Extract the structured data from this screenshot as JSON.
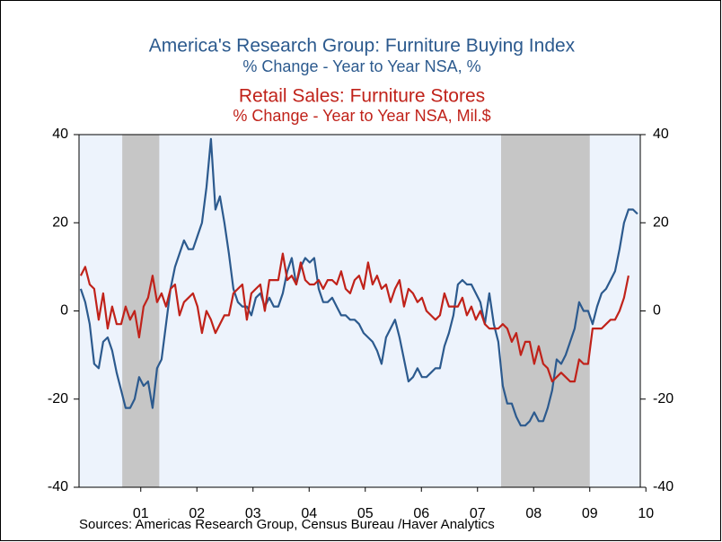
{
  "chart_data": {
    "type": "line",
    "title": "America's Research Group: Furniture Buying Index",
    "subtitle": "% Change - Year to Year    NSA, %",
    "title2": "Retail Sales: Furniture Stores",
    "subtitle2": "% Change - Year to Year    NSA, Mil.$",
    "source": "Sources:  Americas Research Group, Census Bureau /Haver Analytics",
    "x": [
      2000.43,
      2000.51,
      2000.59,
      2000.67,
      2000.75,
      2000.83,
      2000.91,
      2000.99,
      2001.07,
      2001.15,
      2001.23,
      2001.31,
      2001.39,
      2001.47,
      2001.55,
      2001.63,
      2001.71,
      2001.79,
      2001.87,
      2001.95,
      2002.03,
      2002.11,
      2002.19,
      2002.27,
      2002.35,
      2002.43,
      2002.51,
      2002.59,
      2002.67,
      2002.75,
      2002.83,
      2002.91,
      2002.99,
      2003.07,
      2003.15,
      2003.23,
      2003.31,
      2003.39,
      2003.47,
      2003.55,
      2003.63,
      2003.71,
      2003.79,
      2003.87,
      2003.95,
      2004.03,
      2004.11,
      2004.19,
      2004.27,
      2004.35,
      2004.43,
      2004.51,
      2004.59,
      2004.67,
      2004.75,
      2004.83,
      2004.91,
      2004.99,
      2005.07,
      2005.15,
      2005.23,
      2005.31,
      2005.39,
      2005.47,
      2005.55,
      2005.63,
      2005.71,
      2005.79,
      2005.87,
      2005.95,
      2006.03,
      2006.11,
      2006.19,
      2006.27,
      2006.35,
      2006.43,
      2006.51,
      2006.59,
      2006.67,
      2006.75,
      2006.83,
      2006.91,
      2006.99,
      2007.07,
      2007.15,
      2007.23,
      2007.31,
      2007.39,
      2007.47,
      2007.55,
      2007.63,
      2007.71,
      2007.79,
      2007.87,
      2007.95,
      2008.03,
      2008.11,
      2008.19,
      2008.27,
      2008.35,
      2008.43,
      2008.51,
      2008.59,
      2008.67,
      2008.75,
      2008.83,
      2008.91,
      2008.99,
      2009.07,
      2009.15,
      2009.23,
      2009.31,
      2009.39,
      2009.47,
      2009.55,
      2009.63,
      2009.71,
      2009.79,
      2009.87,
      2009.95,
      2010.03,
      2010.11,
      2010.19,
      2010.27,
      2010.35
    ],
    "series": [
      {
        "name": "Furniture Buying Index",
        "color": "#2c5a8e",
        "axis": "y",
        "values": [
          5,
          2,
          -3,
          -12,
          -13,
          -7,
          -6,
          -9,
          -14,
          -18,
          -22,
          -22,
          -20,
          -15,
          -17,
          -16,
          -22,
          -13,
          -11,
          -3,
          5,
          10,
          13,
          16,
          14,
          14,
          17,
          20,
          28,
          39,
          23,
          26,
          20,
          13,
          5,
          2,
          1,
          1,
          -1,
          3,
          4,
          1,
          3,
          1,
          1,
          4,
          9,
          12,
          6,
          10,
          12,
          11,
          12,
          5,
          2,
          2,
          3,
          1,
          -1,
          -1,
          -2,
          -2,
          -3,
          -5,
          -6,
          -7,
          -9,
          -12,
          -6,
          -4,
          -2,
          -6,
          -11,
          -16,
          -15,
          -13,
          -15,
          -15,
          -14,
          -13,
          -13,
          -8,
          -5,
          -1,
          6,
          7,
          6,
          6,
          4,
          2,
          -3,
          4,
          -3,
          -7,
          -17,
          -21,
          -21,
          -24,
          -26,
          -26,
          -25,
          -23,
          -25,
          -25,
          -22,
          -18,
          -11,
          -12,
          -10,
          -7,
          -4,
          2,
          0,
          0,
          -3,
          1,
          4,
          5,
          7,
          9,
          14,
          20,
          23,
          23,
          22
        ]
      },
      {
        "name": "Retail Sales: Furniture Stores",
        "color": "#c0221a",
        "axis": "y2",
        "values": [
          8,
          10,
          6,
          5,
          -2,
          4,
          -4,
          1,
          -3,
          -3,
          1,
          -2,
          0,
          -6,
          1,
          3,
          8,
          2,
          4,
          1,
          5,
          6,
          -1,
          2,
          3,
          4,
          1,
          -5,
          0,
          -2,
          -5,
          -3,
          -1,
          -1,
          4,
          5,
          6,
          -2,
          4,
          5,
          6,
          0,
          7,
          7,
          7,
          13,
          7,
          8,
          6,
          11,
          7,
          6,
          6,
          7,
          5,
          7,
          7,
          6,
          9,
          5,
          4,
          7,
          8,
          5,
          11,
          6,
          8,
          5,
          6,
          2,
          5,
          7,
          1,
          5,
          4,
          2,
          3,
          0,
          -1,
          -2,
          -1,
          4,
          1,
          1,
          1,
          3,
          -1,
          1,
          -2,
          0,
          -3,
          -4,
          -4,
          -4,
          -3,
          -4,
          -7,
          -5,
          -10,
          -7,
          -7,
          -12,
          -8,
          -12,
          -13,
          -16,
          -15,
          -14,
          -15,
          -16,
          -16,
          -11,
          -12,
          -12,
          -4,
          -4,
          -4,
          -3,
          -2,
          -2,
          0,
          3,
          8,
          null,
          null
        ]
      }
    ],
    "recessions": [
      [
        2001.17,
        2001.83
      ],
      [
        2007.92,
        2009.5
      ]
    ],
    "xlim": [
      2000.4,
      2010.4
    ],
    "xticks": [
      {
        "value": 2001.5,
        "label": "01"
      },
      {
        "value": 2002.5,
        "label": "02"
      },
      {
        "value": 2003.5,
        "label": "03"
      },
      {
        "value": 2004.5,
        "label": "04"
      },
      {
        "value": 2005.5,
        "label": "05"
      },
      {
        "value": 2006.5,
        "label": "06"
      },
      {
        "value": 2007.5,
        "label": "07"
      },
      {
        "value": 2008.5,
        "label": "08"
      },
      {
        "value": 2009.5,
        "label": "09"
      },
      {
        "value": 2010.5,
        "label": "10"
      }
    ],
    "ylim": [
      -40,
      40
    ],
    "yticks": [
      -40,
      -20,
      0,
      20,
      40
    ],
    "y2lim": [
      -40,
      40
    ],
    "y2ticks": [
      -40,
      -20,
      0,
      20,
      40
    ]
  }
}
